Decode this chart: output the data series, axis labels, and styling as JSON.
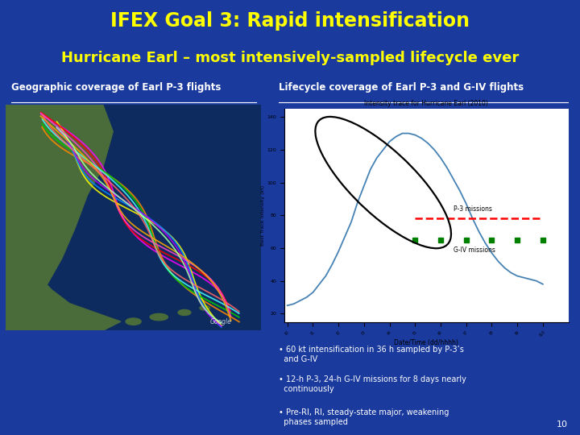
{
  "title": "IFEX Goal 3: Rapid intensification",
  "subtitle": "Hurricane Earl – most intensively-sampled lifecycle ever",
  "bg_color": "#1a3a9e",
  "title_color": "#ffff00",
  "subtitle_color": "#ffff00",
  "left_label": "Geographic coverage of Earl P-3 flights",
  "right_label": "Lifecycle coverage of Earl P-3 and G-IV flights",
  "label_color": "#ffffff",
  "bullet_color": "#ffffff",
  "bullets": [
    "60 kt intensification in 36 h sampled by P-3’s\n  and G-IV",
    "12-h P-3, 24-h G-IV missions for 8 days nearly\n  continuously",
    "Pre-RI, RI, steady-state major, weakening\n  phases sampled"
  ],
  "page_num": "10",
  "chart_title": "Intensity trace for Hurricane Earl (2010)",
  "xlabel_right": "Date/Time (dd/hhhh)",
  "ylabel_right": "Best Track Intensity (kt)",
  "p3_label": "P-3 missions",
  "giv_label": "G-IV missions"
}
